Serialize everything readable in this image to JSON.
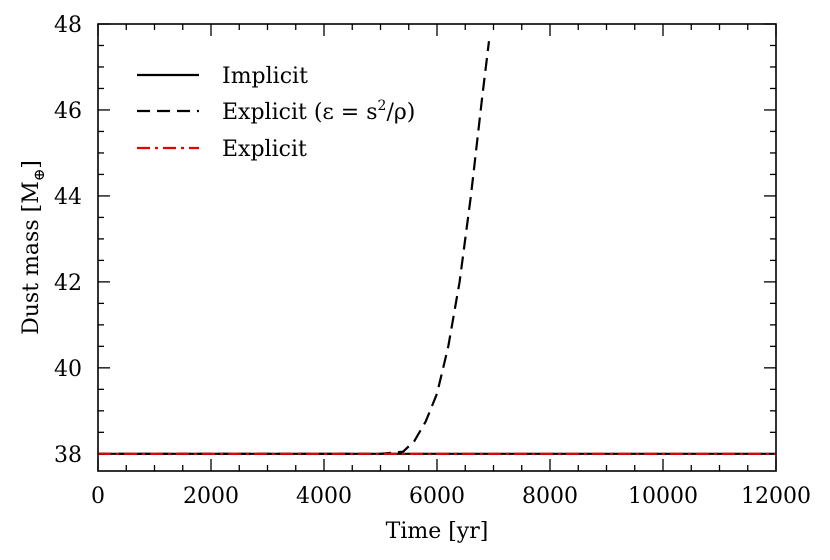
{
  "chart_data": {
    "type": "line",
    "title": "",
    "xlabel": "Time [yr]",
    "ylabel": "Dust mass [M",
    "ylabel_symbol": "⊕",
    "ylabel_close": "]",
    "xlim": [
      0,
      12000
    ],
    "ylim": [
      37.6,
      48
    ],
    "x_ticks": [
      0,
      2000,
      4000,
      6000,
      8000,
      10000,
      12000
    ],
    "x_minor_step": 500,
    "y_ticks": [
      38,
      40,
      42,
      44,
      46,
      48
    ],
    "y_minor_step": 0.5,
    "grid": false,
    "legend_position": "top-left",
    "series": [
      {
        "name": "Implicit",
        "style": "solid",
        "color": "#000000",
        "x": [
          0,
          2000,
          4000,
          6000,
          8000,
          10000,
          12000
        ],
        "y": [
          38.0,
          38.0,
          38.0,
          38.0,
          38.0,
          38.0,
          38.0
        ]
      },
      {
        "name": "Explicit (ε = s²/ρ)",
        "legend_prefix": "Explicit (",
        "legend_eq": "ε = s",
        "legend_sup": "2",
        "legend_suffix": "/ρ)",
        "style": "dashed",
        "color": "#000000",
        "x": [
          0,
          2000,
          4000,
          5000,
          5400,
          5600,
          5800,
          6000,
          6200,
          6400,
          6600,
          6800,
          6920
        ],
        "y": [
          38.0,
          38.0,
          38.0,
          38.0,
          38.05,
          38.3,
          38.75,
          39.4,
          40.5,
          42.0,
          44.0,
          46.3,
          47.6
        ]
      },
      {
        "name": "Explicit",
        "style": "dashdot",
        "color": "#e60000",
        "x": [
          0,
          2000,
          4000,
          6000,
          8000,
          10000,
          12000
        ],
        "y": [
          38.0,
          38.0,
          38.0,
          38.0,
          38.0,
          38.0,
          38.0
        ]
      }
    ]
  }
}
